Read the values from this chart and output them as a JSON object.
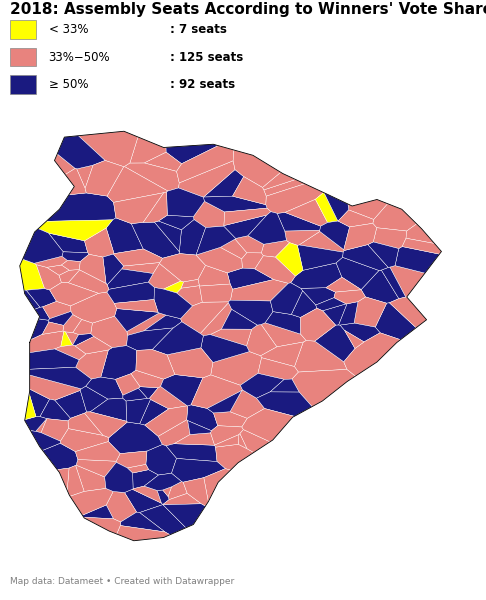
{
  "title": "2018: Assembly Seats According to Winners' Vote Share",
  "legend": [
    {
      "label": "< 33%",
      "color": "#ffff00",
      "seats": "7 seats"
    },
    {
      "label": "33%−50%",
      "color": "#e8837e",
      "seats": "125 seats"
    },
    {
      "label": "≥ 50%",
      "color": "#1a1a80",
      "seats": "92 seats"
    }
  ],
  "footer": "Map data: Datameet • Created with Datawrapper",
  "background_color": "#ffffff",
  "boundary_color": "#ffffff",
  "boundary_linewidth": 0.3,
  "colors": {
    "yellow": "#ffff00",
    "pink": "#e8837e",
    "navy": "#1a1a80"
  },
  "title_fontsize": 11,
  "legend_fontsize": 8.5,
  "footer_fontsize": 6.5
}
